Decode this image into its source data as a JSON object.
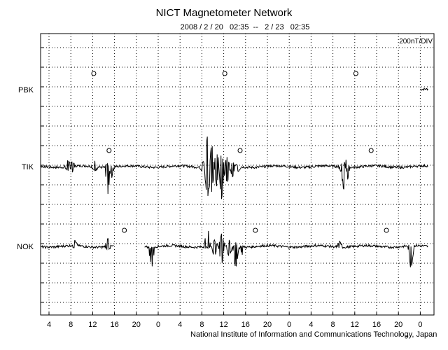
{
  "chart_data": {
    "type": "line",
    "title": "NICT Magnetometer Network",
    "subtitle": "2008 / 2 / 20   02:35  --   2 / 23   02:35",
    "scale_label": "200nT/DIV",
    "credit": "National Institute of Information and Communications Technology, Japan",
    "x_tick_labels": [
      "4",
      "8",
      "12",
      "16",
      "20",
      "0",
      "4",
      "8",
      "12",
      "16",
      "20",
      "0",
      "4",
      "8",
      "12",
      "16",
      "20",
      "0"
    ],
    "x_unit": "hours (UT), 3 days",
    "grid": true,
    "stations": [
      {
        "name": "PBK",
        "markers_hour": [
          12.2,
          36.2,
          60.2
        ],
        "gaps": [
          [
            0,
            72
          ]
        ],
        "events": []
      },
      {
        "name": "TIK",
        "markers_hour": [
          15.0,
          39.0,
          63.0
        ],
        "gaps": [],
        "events": [
          {
            "hour": 7.4,
            "min": -0.2,
            "max": 0.35
          },
          {
            "hour": 8.3,
            "min": -0.25,
            "max": 0.3
          },
          {
            "hour": 12.4,
            "min": -0.25,
            "max": 0.25
          },
          {
            "hour": 14.8,
            "min": -1.4,
            "max": 0.15
          },
          {
            "hour": 15.4,
            "min": -0.6,
            "max": 0.05
          },
          {
            "hour": 32.2,
            "min": -0.2,
            "max": 0.3
          },
          {
            "hour": 33.0,
            "min": -1.7,
            "max": 1.6
          },
          {
            "hour": 33.8,
            "min": -1.3,
            "max": 1.2
          },
          {
            "hour": 34.7,
            "min": -1.0,
            "max": 0.8
          },
          {
            "hour": 35.6,
            "min": -1.7,
            "max": 0.6
          },
          {
            "hour": 36.6,
            "min": -1.0,
            "max": 0.4
          },
          {
            "hour": 37.6,
            "min": -0.6,
            "max": 0.2
          },
          {
            "hour": 38.6,
            "min": -0.3,
            "max": 0.1
          },
          {
            "hour": 57.6,
            "min": -0.3,
            "max": 0.1
          },
          {
            "hour": 58.1,
            "min": -1.3,
            "max": 0.4
          },
          {
            "hour": 58.6,
            "min": -0.7,
            "max": 0.2
          }
        ]
      },
      {
        "name": "NOK",
        "markers_hour": [
          17.8,
          41.8,
          65.8
        ],
        "gaps": [
          [
            15.8,
            21.5
          ]
        ],
        "events": [
          {
            "hour": 8.7,
            "min": -0.1,
            "max": 0.3
          },
          {
            "hour": 14.8,
            "min": -0.25,
            "max": 0.45
          },
          {
            "hour": 22.8,
            "min": -1.2,
            "max": 0.0
          },
          {
            "hour": 33.0,
            "min": -0.1,
            "max": 1.15
          },
          {
            "hour": 34.3,
            "min": -0.6,
            "max": 0.3
          },
          {
            "hour": 35.6,
            "min": -1.0,
            "max": 0.6
          },
          {
            "hour": 37.0,
            "min": -0.6,
            "max": 0.25
          },
          {
            "hour": 38.2,
            "min": -1.25,
            "max": 0.2
          },
          {
            "hour": 39.4,
            "min": -0.4,
            "max": 0.1
          },
          {
            "hour": 57.2,
            "min": -0.1,
            "max": 0.35
          },
          {
            "hour": 70.3,
            "min": -1.25,
            "max": 0.0
          }
        ]
      }
    ]
  }
}
